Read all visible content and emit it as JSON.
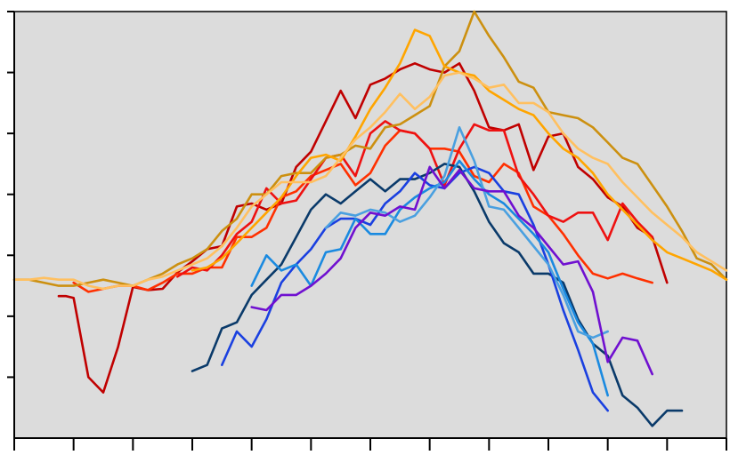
{
  "chart_data": {
    "type": "line",
    "title": "",
    "xlabel": "",
    "ylabel": "",
    "xlim": [
      0,
      48
    ],
    "ylim": [
      0,
      7
    ],
    "x_ticks": [
      0,
      4,
      8,
      12,
      16,
      20,
      24,
      28,
      32,
      36,
      40,
      44,
      48
    ],
    "y_ticks": [
      1,
      2,
      3,
      4,
      5,
      6,
      7
    ],
    "x_tick_labels_visible": false,
    "y_tick_labels_visible": false,
    "grid": false,
    "legend": "none",
    "background_color": "#dcdcdc",
    "series": [
      {
        "color": "#c00000",
        "x": [
          3,
          3.5,
          4,
          5,
          6,
          7,
          8,
          9,
          10,
          11,
          12,
          13,
          14,
          15,
          16,
          17,
          18,
          19,
          20,
          21,
          22,
          23,
          24,
          25,
          26,
          27,
          28,
          29,
          30,
          31,
          32,
          33,
          34,
          35,
          36,
          37,
          38,
          39,
          40,
          41,
          42,
          43,
          44
        ],
        "y": [
          2.33,
          2.33,
          2.3,
          1.0,
          0.75,
          1.5,
          2.48,
          2.43,
          2.45,
          2.72,
          2.9,
          3.1,
          3.15,
          3.8,
          3.85,
          3.75,
          3.85,
          4.45,
          4.7,
          5.2,
          5.7,
          5.25,
          5.8,
          5.9,
          6.05,
          6.15,
          6.05,
          6.0,
          6.15,
          5.7,
          5.1,
          5.05,
          5.15,
          4.4,
          4.95,
          5.0,
          4.45,
          4.25,
          3.95,
          3.8,
          3.45,
          3.3,
          2.55
        ]
      },
      {
        "color": "#ff3000",
        "x": [
          4,
          5,
          6,
          7,
          8,
          9,
          10,
          11,
          12,
          13,
          14,
          15,
          16,
          17,
          18,
          19,
          20,
          21,
          22,
          23,
          24,
          25,
          26,
          27,
          28,
          29,
          30,
          31,
          32,
          33,
          34,
          35,
          36,
          37,
          38,
          39,
          40,
          41,
          42,
          43
        ],
        "y": [
          2.55,
          2.4,
          2.45,
          2.5,
          2.5,
          2.43,
          2.55,
          2.7,
          2.7,
          2.8,
          2.8,
          3.3,
          3.3,
          3.45,
          3.95,
          4.05,
          4.3,
          4.4,
          4.5,
          4.15,
          4.35,
          4.8,
          5.05,
          5.0,
          4.75,
          4.75,
          4.7,
          4.3,
          4.2,
          4.5,
          4.35,
          3.8,
          3.65,
          3.35,
          3.0,
          2.7,
          2.62,
          2.7,
          2.62,
          2.55
        ]
      },
      {
        "color": "#ee1111",
        "x": [
          11,
          12,
          13,
          14,
          15,
          16,
          17,
          18,
          19,
          20,
          21,
          22,
          23,
          24,
          25,
          26,
          27,
          28,
          29,
          30,
          31,
          32,
          33,
          34,
          35,
          36,
          37,
          38,
          39,
          40,
          41,
          42,
          43
        ],
        "y": [
          2.65,
          2.8,
          2.75,
          3.0,
          3.35,
          3.55,
          4.1,
          3.85,
          3.9,
          4.25,
          4.6,
          4.65,
          4.3,
          5.0,
          5.2,
          5.05,
          5.0,
          4.75,
          4.15,
          4.75,
          5.15,
          5.05,
          5.05,
          4.3,
          4.0,
          3.65,
          3.55,
          3.7,
          3.7,
          3.25,
          3.85,
          3.55,
          3.3
        ]
      },
      {
        "color": "#cc9010",
        "x": [
          0,
          1,
          2,
          3,
          4,
          5,
          6,
          7,
          8,
          9,
          10,
          11,
          12,
          13,
          14,
          15,
          16,
          17,
          18,
          19,
          20,
          21,
          22,
          23,
          24,
          25,
          26,
          27,
          28,
          29,
          30,
          31,
          32,
          33,
          34,
          35,
          36,
          37,
          38,
          39,
          40,
          41,
          42,
          43,
          44,
          45,
          46,
          47,
          48
        ],
        "y": [
          2.6,
          2.6,
          2.55,
          2.5,
          2.5,
          2.55,
          2.6,
          2.55,
          2.5,
          2.6,
          2.7,
          2.85,
          2.95,
          3.1,
          3.4,
          3.6,
          4.0,
          4.0,
          4.3,
          4.35,
          4.35,
          4.6,
          4.65,
          4.8,
          4.75,
          5.1,
          5.15,
          5.3,
          5.45,
          6.1,
          6.35,
          7.0,
          6.6,
          6.25,
          5.85,
          5.75,
          5.35,
          5.3,
          5.25,
          5.1,
          4.85,
          4.6,
          4.5,
          4.15,
          3.8,
          3.4,
          2.95,
          2.85,
          2.6
        ]
      },
      {
        "color": "#ffa500",
        "x": [
          12,
          13,
          14,
          15,
          16,
          17,
          18,
          19,
          20,
          21,
          22,
          23,
          24,
          25,
          26,
          27,
          28,
          29,
          30,
          31,
          32,
          33,
          34,
          35,
          36,
          37,
          38,
          39,
          40,
          41,
          42,
          43,
          44,
          45,
          46,
          47,
          48
        ],
        "y": [
          2.75,
          2.8,
          2.95,
          3.2,
          3.45,
          3.7,
          3.95,
          4.3,
          4.6,
          4.65,
          4.55,
          4.95,
          5.4,
          5.75,
          6.15,
          6.7,
          6.6,
          6.1,
          6.0,
          5.95,
          5.7,
          5.55,
          5.4,
          5.3,
          5.0,
          4.75,
          4.6,
          4.35,
          4.0,
          3.75,
          3.5,
          3.25,
          3.05,
          2.95,
          2.85,
          2.75,
          2.6
        ]
      },
      {
        "color": "#ffc060",
        "x": [
          0,
          1,
          2,
          3,
          4,
          5,
          6,
          7,
          8,
          9,
          10,
          11,
          12,
          13,
          14,
          15,
          16,
          17,
          18,
          19,
          20,
          21,
          22,
          23,
          24,
          25,
          26,
          27,
          28,
          29,
          30,
          31,
          32,
          33,
          34,
          35,
          36,
          37,
          38,
          39,
          40,
          41,
          42,
          43,
          44,
          45,
          46,
          47,
          48
        ],
        "y": [
          2.6,
          2.6,
          2.63,
          2.6,
          2.6,
          2.5,
          2.45,
          2.5,
          2.5,
          2.6,
          2.65,
          2.75,
          2.85,
          2.95,
          3.15,
          3.45,
          3.8,
          4.0,
          4.2,
          4.2,
          4.2,
          4.3,
          4.6,
          4.9,
          5.1,
          5.35,
          5.65,
          5.4,
          5.6,
          5.95,
          6.0,
          5.9,
          5.75,
          5.8,
          5.5,
          5.5,
          5.35,
          5.0,
          4.75,
          4.6,
          4.5,
          4.2,
          3.95,
          3.7,
          3.5,
          3.3,
          3.05,
          2.9,
          2.75
        ]
      },
      {
        "color": "#0a3a6a",
        "x": [
          12,
          13,
          14,
          15,
          16,
          17,
          18,
          19,
          20,
          21,
          22,
          23,
          24,
          25,
          26,
          27,
          28,
          29,
          30,
          31,
          32,
          33,
          34,
          35,
          36,
          37,
          38,
          39,
          40,
          41,
          42,
          43,
          44,
          45
        ],
        "y": [
          1.1,
          1.2,
          1.8,
          1.9,
          2.35,
          2.6,
          2.85,
          3.3,
          3.75,
          4.0,
          3.85,
          4.05,
          4.25,
          4.05,
          4.25,
          4.25,
          4.35,
          4.5,
          4.45,
          4.05,
          3.55,
          3.2,
          3.05,
          2.7,
          2.7,
          2.55,
          1.95,
          1.55,
          1.35,
          0.7,
          0.5,
          0.2,
          0.45,
          0.45
        ]
      },
      {
        "color": "#1a40e0",
        "x": [
          14,
          15,
          16,
          17,
          18,
          19,
          20,
          21,
          22,
          23,
          24,
          25,
          26,
          27,
          28,
          29,
          30,
          31,
          32,
          33,
          34,
          35,
          36,
          37,
          38,
          39,
          40
        ],
        "y": [
          1.2,
          1.75,
          1.5,
          1.95,
          2.55,
          2.85,
          3.1,
          3.45,
          3.6,
          3.6,
          3.5,
          3.85,
          4.05,
          4.35,
          4.15,
          4.1,
          4.35,
          4.45,
          4.35,
          4.05,
          4.0,
          3.5,
          2.85,
          2.1,
          1.45,
          0.75,
          0.45
        ]
      },
      {
        "color": "#1a8ae0",
        "x": [
          16,
          17,
          18,
          19,
          20,
          21,
          22,
          23,
          24,
          25,
          26,
          27,
          28,
          29,
          30,
          31,
          32,
          33,
          34,
          35,
          36,
          37,
          38,
          39,
          40
        ],
        "y": [
          2.5,
          3.0,
          2.75,
          2.85,
          2.5,
          3.05,
          3.1,
          3.6,
          3.35,
          3.35,
          3.75,
          3.95,
          4.1,
          4.2,
          4.55,
          4.25,
          4.0,
          3.85,
          3.6,
          3.35,
          3.05,
          2.45,
          1.9,
          1.55,
          0.7
        ]
      },
      {
        "color": "#4aa0e0",
        "x": [
          21,
          22,
          23,
          24,
          25,
          26,
          27,
          28,
          29,
          30,
          31,
          32,
          33,
          34,
          35,
          36,
          37,
          38,
          39,
          40
        ],
        "y": [
          3.45,
          3.7,
          3.65,
          3.75,
          3.7,
          3.55,
          3.65,
          3.95,
          4.3,
          5.1,
          4.55,
          3.8,
          3.75,
          3.45,
          3.15,
          2.85,
          2.35,
          1.75,
          1.65,
          1.75
        ]
      },
      {
        "color": "#7010d0",
        "x": [
          16,
          17,
          18,
          19,
          20,
          21,
          22,
          23,
          24,
          25,
          26,
          27,
          28,
          29,
          30,
          31,
          32,
          33,
          34,
          35,
          36,
          37,
          38,
          39,
          40,
          41,
          42,
          43
        ],
        "y": [
          2.15,
          2.1,
          2.35,
          2.35,
          2.5,
          2.7,
          2.95,
          3.45,
          3.7,
          3.65,
          3.8,
          3.75,
          4.45,
          4.1,
          4.4,
          4.1,
          4.05,
          4.05,
          3.65,
          3.45,
          3.15,
          2.85,
          2.9,
          2.4,
          1.25,
          1.65,
          1.6,
          1.05
        ]
      }
    ]
  }
}
